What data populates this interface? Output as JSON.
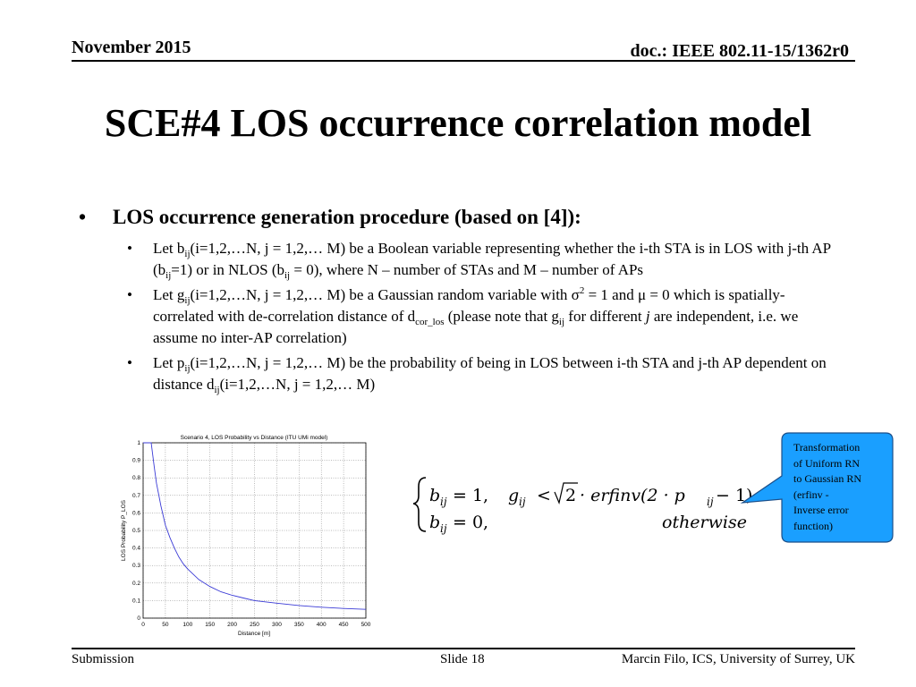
{
  "header": {
    "date": "November 2015",
    "doc": "doc.: IEEE 802.11-15/1362r0"
  },
  "title": "SCE#4 LOS occurrence correlation model",
  "bullet_main": "LOS occurrence generation procedure (based on [4]):",
  "bullets": {
    "b1": {
      "p1": "Let b",
      "s1": "ij",
      "p2": "(i=1,2,…N, j = 1,2,… M) be a Boolean variable representing whether the i-th STA is in LOS with j-th AP (b",
      "s2": "ij",
      "p3": "=1) or in NLOS (b",
      "s3": "ij",
      "p4": " = 0), where N – number of STAs and M – number of APs"
    },
    "b2": {
      "p1": "Let g",
      "s1": "ij",
      "p2": "(i=1,2,…N, j = 1,2,… M) be a Gaussian random variable with σ",
      "sup1": "2",
      "p3": " = 1 and μ = 0 which is spatially-correlated with de-correlation distance of d",
      "s2": "cor_los",
      "p4": "  (please note that g",
      "s3": "ij",
      "p5": " for different ",
      "it1": "j",
      "p6": " are independent, i.e. we assume no inter-AP correlation)"
    },
    "b3": {
      "p1": "Let p",
      "s1": "ij",
      "p2": "(i=1,2,…N, j = 1,2,… M) be the probability of being in LOS between i-th STA and j-th AP dependent on distance d",
      "s2": "ij",
      "p3": "(i=1,2,…N, j = 1,2,… M)"
    }
  },
  "formula": {
    "line1_lhs": "b",
    "line1_sub": "ij",
    "line1_rhs": " = 1,",
    "g": "g",
    "g_sub": "ij",
    "lt": "<",
    "sqrt2": "2",
    "erf": "· erfinv(2 · p",
    "p_sub": "ij",
    "tail": " − 1)",
    "line2_lhs": "b",
    "line2_sub": "ij",
    "line2_rhs": " = 0,",
    "otherwise": "otherwise"
  },
  "callout": {
    "lines": [
      "Transformation",
      "of Uniform RN",
      "to Gaussian RN",
      " (erfinv -",
      "Inverse error",
      "function)"
    ],
    "fill": "#1a9fff"
  },
  "chart_data": {
    "type": "line",
    "title": "Scenario 4, LOS Probability vs Distance (ITU UMi model)",
    "xlabel": "Distance [m]",
    "ylabel": "LOS Probability P_LOS",
    "xlim": [
      0,
      500
    ],
    "ylim": [
      0,
      1
    ],
    "xticks": [
      "0",
      "50",
      "100",
      "150",
      "200",
      "250",
      "300",
      "350",
      "400",
      "450",
      "500"
    ],
    "yticks": [
      "0",
      "0.1",
      "0.2",
      "0.3",
      "0.4",
      "0.5",
      "0.6",
      "0.7",
      "0.8",
      "0.9",
      "1"
    ],
    "grid": true,
    "series": [
      {
        "color": "#3b3bd6",
        "x": [
          0,
          10,
          18,
          25,
          30,
          40,
          50,
          60,
          70,
          80,
          90,
          100,
          125,
          150,
          175,
          200,
          225,
          250,
          300,
          350,
          400,
          450,
          500
        ],
        "y": [
          1,
          1,
          1,
          0.86,
          0.77,
          0.64,
          0.53,
          0.46,
          0.4,
          0.35,
          0.31,
          0.28,
          0.22,
          0.18,
          0.15,
          0.13,
          0.115,
          0.1,
          0.085,
          0.072,
          0.062,
          0.055,
          0.05
        ]
      }
    ]
  },
  "footer": {
    "left": "Submission",
    "mid": "Slide 18",
    "right": "Marcin Filo, ICS, University of Surrey, UK"
  }
}
